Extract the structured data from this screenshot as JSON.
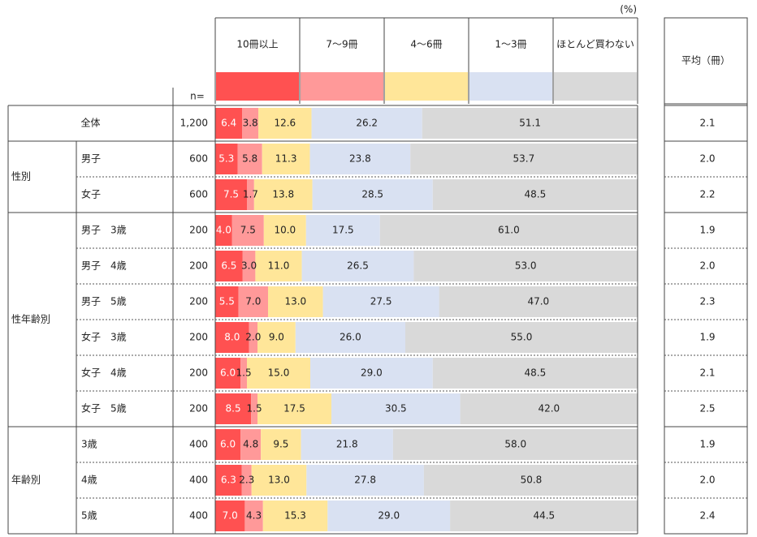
{
  "unit": "(%)",
  "n_label": "n=",
  "average_header": "平均（冊）",
  "legend": [
    {
      "label": "10冊以上",
      "color": "#ff5151"
    },
    {
      "label": "7～9冊",
      "color": "#ff9999"
    },
    {
      "label": "4～6冊",
      "color": "#ffe699"
    },
    {
      "label": "1～3冊",
      "color": "#d9e1f2"
    },
    {
      "label": "ほとんど買わない",
      "color": "#d9d9d9"
    }
  ],
  "groups": [
    {
      "label": "",
      "rows": [
        0
      ]
    },
    {
      "label": "性別",
      "rows": [
        1,
        2
      ]
    },
    {
      "label": "性年齢別",
      "rows": [
        3,
        4,
        5,
        6,
        7,
        8
      ]
    },
    {
      "label": "年齢別",
      "rows": [
        9,
        10,
        11
      ]
    }
  ],
  "chart_data": {
    "type": "bar",
    "stacked": true,
    "orientation": "horizontal",
    "xlim": [
      0,
      100
    ],
    "series": [
      {
        "name": "10冊以上",
        "values": [
          6.4,
          5.3,
          7.5,
          4.0,
          6.5,
          5.5,
          8.0,
          6.0,
          8.5,
          6.0,
          6.3,
          7.0
        ]
      },
      {
        "name": "7～9冊",
        "values": [
          3.8,
          5.8,
          1.7,
          7.5,
          3.0,
          7.0,
          2.0,
          1.5,
          1.5,
          4.8,
          2.3,
          4.3
        ]
      },
      {
        "name": "4～6冊",
        "values": [
          12.6,
          11.3,
          13.8,
          10.0,
          11.0,
          13.0,
          9.0,
          15.0,
          17.5,
          9.5,
          13.0,
          15.3
        ]
      },
      {
        "name": "1～3冊",
        "values": [
          26.2,
          23.8,
          28.5,
          17.5,
          26.5,
          27.5,
          26.0,
          29.0,
          30.5,
          21.8,
          27.8,
          29.0
        ]
      },
      {
        "name": "ほとんど買わない",
        "values": [
          51.1,
          53.7,
          48.5,
          61.0,
          53.0,
          47.0,
          55.0,
          48.5,
          42.0,
          58.0,
          50.8,
          44.5
        ]
      }
    ],
    "rows": [
      {
        "label": "全体",
        "n": "1,200",
        "average": "2.1"
      },
      {
        "label": "男子",
        "n": "600",
        "average": "2.0"
      },
      {
        "label": "女子",
        "n": "600",
        "average": "2.2"
      },
      {
        "label": "男子　3歳",
        "n": "200",
        "average": "1.9"
      },
      {
        "label": "男子　4歳",
        "n": "200",
        "average": "2.0"
      },
      {
        "label": "男子　5歳",
        "n": "200",
        "average": "2.3"
      },
      {
        "label": "女子　3歳",
        "n": "200",
        "average": "1.9"
      },
      {
        "label": "女子　4歳",
        "n": "200",
        "average": "2.1"
      },
      {
        "label": "女子　5歳",
        "n": "200",
        "average": "2.5"
      },
      {
        "label": "3歳",
        "n": "400",
        "average": "1.9"
      },
      {
        "label": "4歳",
        "n": "400",
        "average": "2.0"
      },
      {
        "label": "5歳",
        "n": "400",
        "average": "2.4"
      }
    ]
  }
}
